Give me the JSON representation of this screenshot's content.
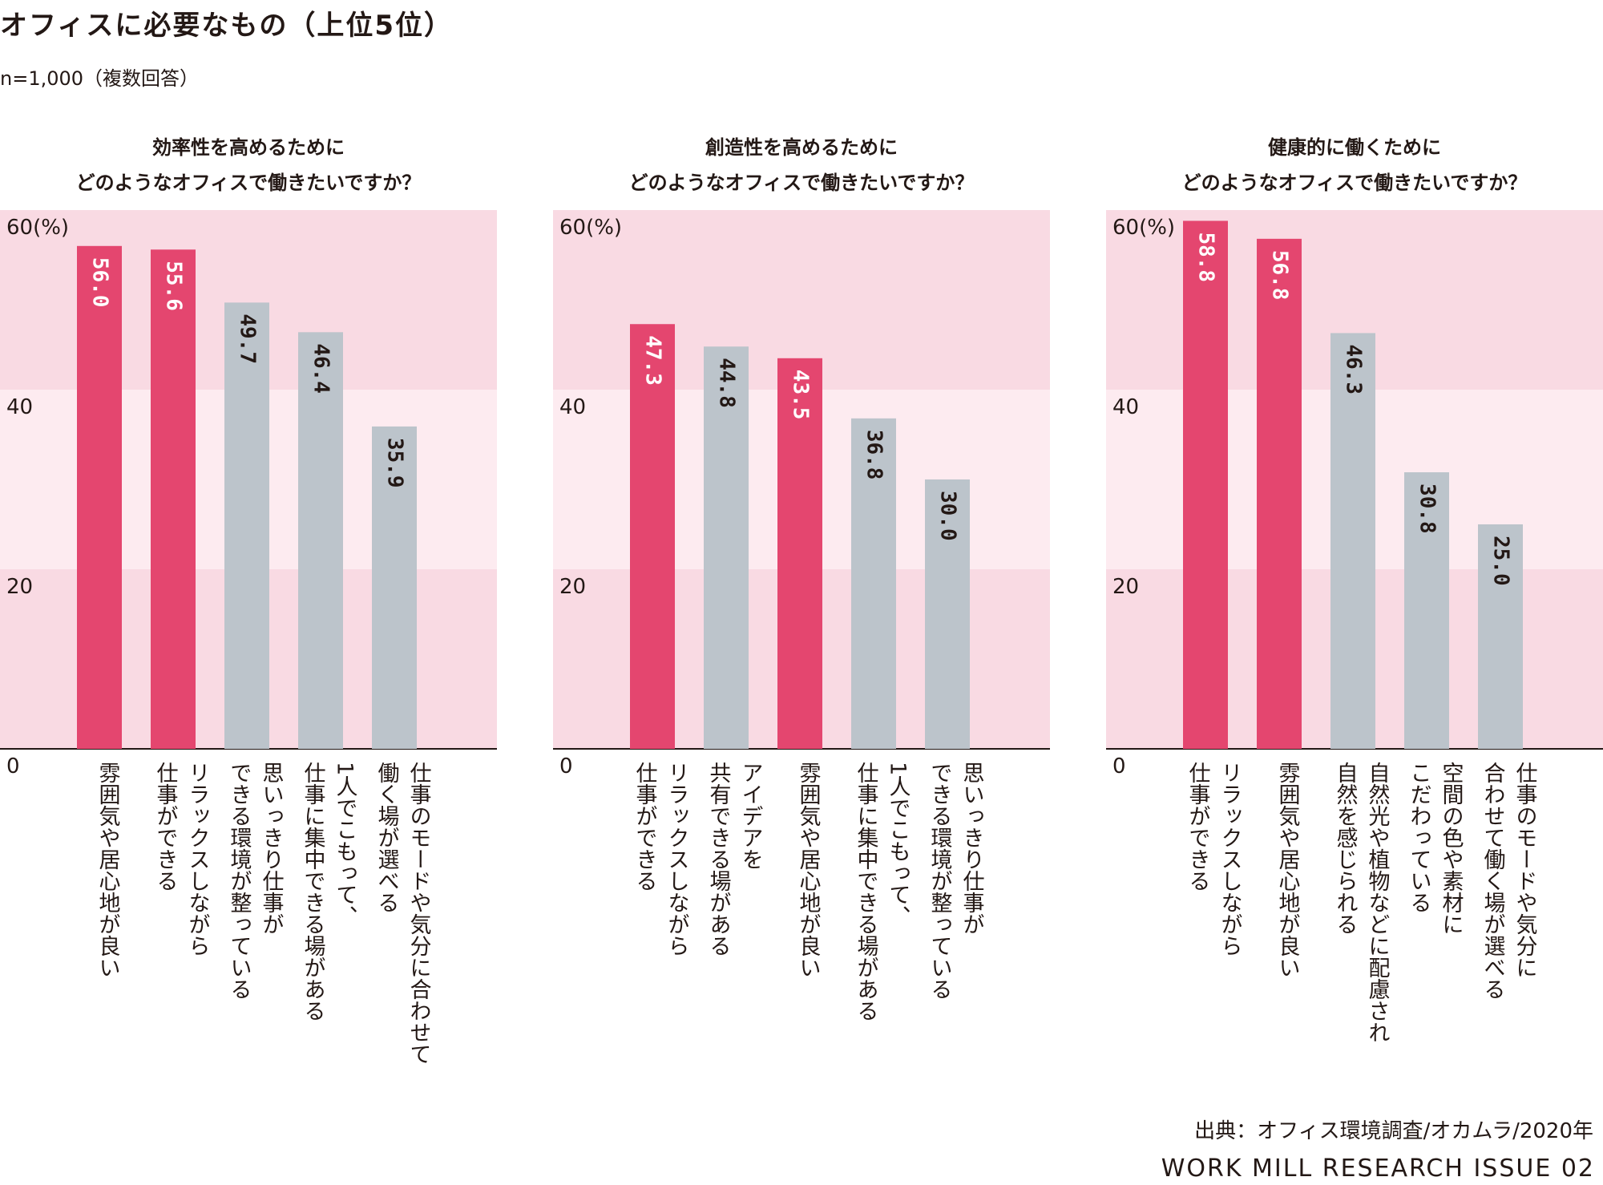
{
  "title": "オフィスに必要なもの（上位5位）",
  "subtitle": "n=1,000（複数回答）",
  "source": "出典：オフィス環境調査/オカムラ/2020年",
  "brand": "WORK MILL RESEARCH ISSUE 02",
  "colors": {
    "highlight": "#e4466f",
    "neutral": "#bcc4cb",
    "band_dark": "#f9dae3",
    "band_light": "#fdebf0"
  },
  "chart_data": [
    {
      "type": "bar",
      "question": [
        "効率性を高めるために",
        "どのようなオフィスで働きたいですか？"
      ],
      "ylim": [
        0,
        60
      ],
      "yticks": [
        "0",
        "20",
        "40",
        "60(%)"
      ],
      "categories": [
        [
          "雰囲気や居心地が良い"
        ],
        [
          "リラックスしながら",
          "仕事ができる"
        ],
        [
          "思いっきり仕事が",
          "できる環境が整っている"
        ],
        [
          "1人でこもって、",
          "仕事に集中できる場がある"
        ],
        [
          "仕事のモードや気分に合わせて",
          "働く場が選べる"
        ]
      ],
      "values": [
        56.0,
        55.6,
        49.7,
        46.4,
        35.9
      ],
      "labels": [
        "56.0",
        "55.6",
        "49.7",
        "46.4",
        "35.9"
      ],
      "highlight": [
        true,
        true,
        false,
        false,
        false
      ]
    },
    {
      "type": "bar",
      "question": [
        "創造性を高めるために",
        "どのようなオフィスで働きたいですか？"
      ],
      "ylim": [
        0,
        60
      ],
      "yticks": [
        "0",
        "20",
        "40",
        "60(%)"
      ],
      "categories": [
        [
          "リラックスしながら",
          "仕事ができる"
        ],
        [
          "アイデアを",
          "共有できる場がある"
        ],
        [
          "雰囲気や居心地が良い"
        ],
        [
          "1人でこもって、",
          "仕事に集中できる場がある"
        ],
        [
          "思いっきり仕事が",
          "できる環境が整っている"
        ]
      ],
      "values": [
        47.3,
        44.8,
        43.5,
        36.8,
        30.0
      ],
      "labels": [
        "47.3",
        "44.8",
        "43.5",
        "36.8",
        "30.0"
      ],
      "highlight": [
        true,
        false,
        true,
        false,
        false
      ]
    },
    {
      "type": "bar",
      "question": [
        "健康的に働くために",
        "どのようなオフィスで働きたいですか？"
      ],
      "ylim": [
        0,
        60
      ],
      "yticks": [
        "0",
        "20",
        "40",
        "60(%)"
      ],
      "categories": [
        [
          "リラックスしながら",
          "仕事ができる"
        ],
        [
          "雰囲気や居心地が良い"
        ],
        [
          "自然光や植物などに配慮され",
          "自然を感じられる"
        ],
        [
          "空間の色や素材に",
          "こだわっている"
        ],
        [
          "仕事のモードや気分に",
          "合わせて働く場が選べる"
        ]
      ],
      "values": [
        58.8,
        56.8,
        46.3,
        30.8,
        25.0
      ],
      "labels": [
        "58.8",
        "56.8",
        "46.3",
        "30.8",
        "25.0"
      ],
      "highlight": [
        true,
        true,
        false,
        false,
        false
      ]
    }
  ]
}
